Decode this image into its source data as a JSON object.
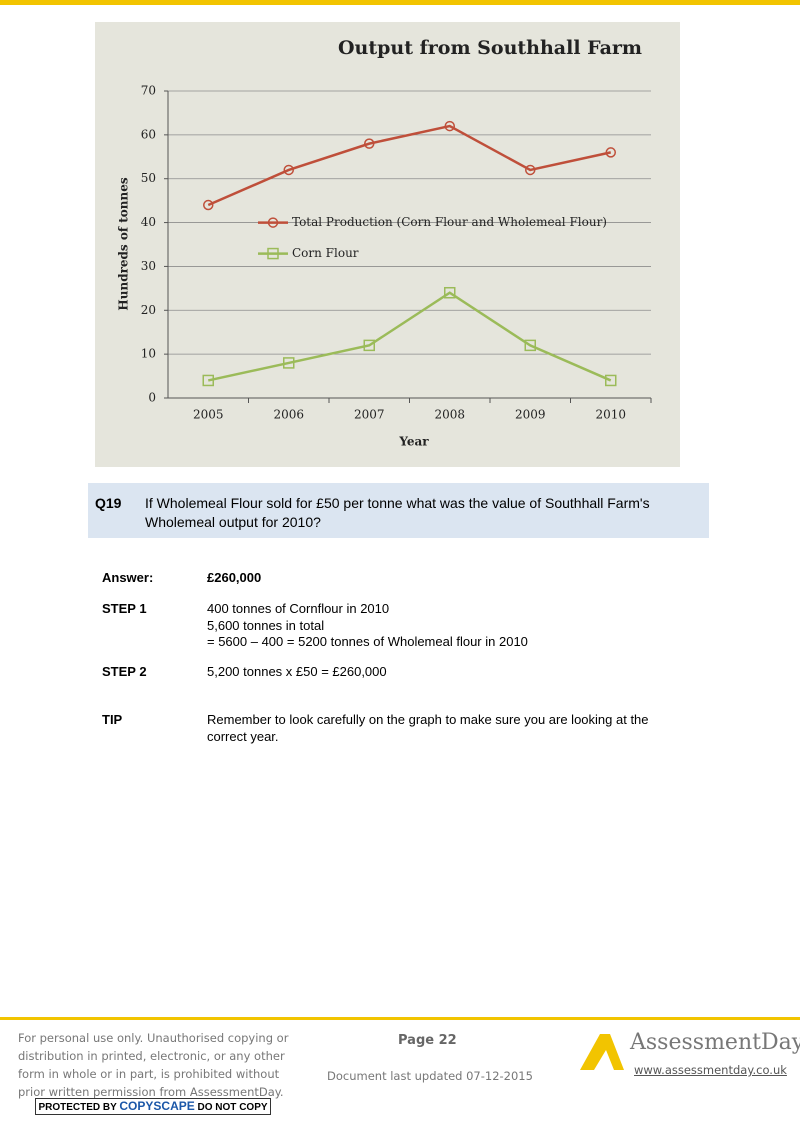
{
  "chart_data": {
    "type": "line",
    "title": "Output from Southhall Farm",
    "x_label": "Year",
    "y_label": "Hundreds of tonnes",
    "categories": [
      "2005",
      "2006",
      "2007",
      "2008",
      "2009",
      "2010"
    ],
    "series": [
      {
        "name": "Total Production (Corn Flour and Wholemeal Flour)",
        "color": "#bf4f3a",
        "marker": "circle",
        "values": [
          44,
          52,
          58,
          62,
          52,
          56
        ]
      },
      {
        "name": "Corn Flour",
        "color": "#9bbb59",
        "marker": "square",
        "values": [
          4,
          8,
          12,
          24,
          12,
          4
        ]
      }
    ],
    "ylim": [
      0,
      70
    ],
    "yticks": [
      0,
      10,
      20,
      30,
      40,
      50,
      60,
      70
    ],
    "grid": true,
    "legend": "left"
  },
  "question": {
    "number": "Q19",
    "lines": [
      "If Wholemeal Flour sold for £50 per tonne what was the value of Southhall Farm's",
      "Wholemeal output for 2010?"
    ]
  },
  "answer": {
    "label": "Answer:",
    "value": "£260,000"
  },
  "steps": [
    {
      "label": "STEP 1",
      "lines": [
        "400 tonnes of Cornflour in 2010",
        "5,600 tonnes in total",
        "= 5600 – 400 = 5200 tonnes of Wholemeal flour in 2010"
      ]
    },
    {
      "label": "STEP 2",
      "lines": [
        "5,200 tonnes x £50 = £260,000"
      ]
    }
  ],
  "tip": {
    "label": "TIP",
    "lines": [
      "Remember to look carefully on the graph to make sure you are looking at the",
      "correct year."
    ]
  },
  "footer": {
    "notice": [
      "For personal use only. Unauthorised copying or",
      "distribution in printed, electronic, or any other",
      "form in whole or in part, is prohibited without",
      "prior written permission from AssessmentDay."
    ],
    "badge": [
      "PROTECTED BY",
      "COPYSCAPE",
      "DO NOT COPY"
    ],
    "page": "Page 22",
    "updated": "Document last updated 07-12-2015",
    "brand": "AssessmentDay",
    "url": "www.assessmentday.co.uk"
  }
}
